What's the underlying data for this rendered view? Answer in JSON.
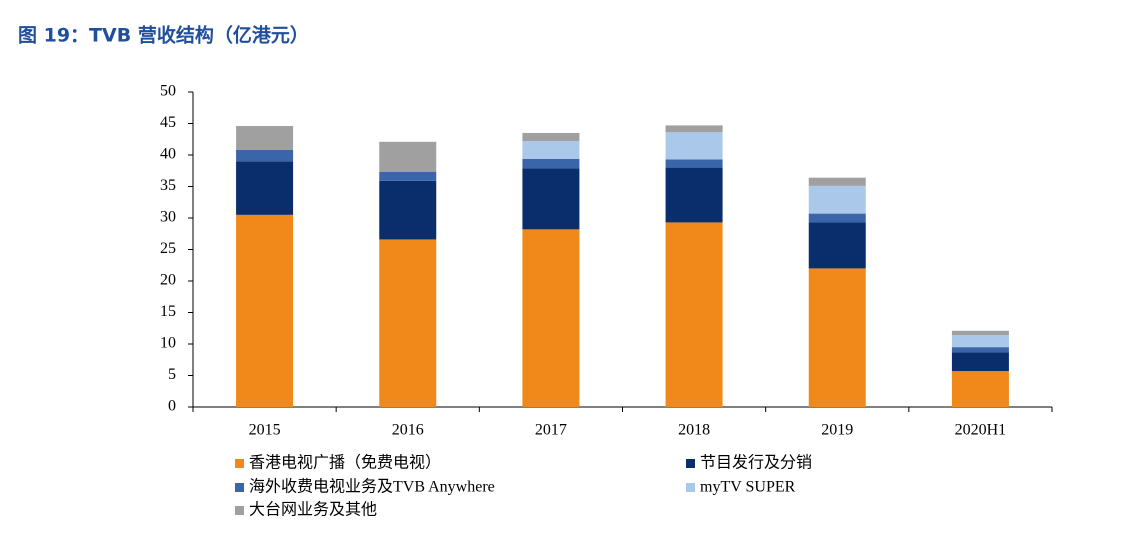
{
  "chart_data": {
    "type": "stacked-bar",
    "title": "图 19：TVB 营收结构（亿港元）",
    "categories": [
      "2015",
      "2016",
      "2017",
      "2018",
      "2019",
      "2020H1"
    ],
    "series": [
      {
        "name": "香港电视广播（免费电视）",
        "color": "#f0881a",
        "values": [
          30.5,
          26.6,
          28.2,
          29.3,
          22.0,
          5.7
        ]
      },
      {
        "name": "节目发行及分销",
        "color": "#0a2d6b",
        "values": [
          8.5,
          9.3,
          9.7,
          8.7,
          7.3,
          3.0
        ]
      },
      {
        "name": "海外收费电视业务及TVB Anywhere",
        "color": "#3a65a8",
        "values": [
          1.8,
          1.4,
          1.5,
          1.3,
          1.4,
          0.8
        ]
      },
      {
        "name": "myTV SUPER",
        "color": "#a9c8ea",
        "values": [
          0,
          0,
          2.8,
          4.3,
          4.4,
          1.9
        ]
      },
      {
        "name": "大台网业务及其他",
        "color": "#a0a0a0",
        "values": [
          3.8,
          4.8,
          1.3,
          1.1,
          1.3,
          0.7
        ]
      }
    ],
    "ylim": [
      0,
      50
    ],
    "yticks": [
      0,
      5,
      10,
      15,
      20,
      25,
      30,
      35,
      40,
      45,
      50
    ],
    "grid": false
  }
}
